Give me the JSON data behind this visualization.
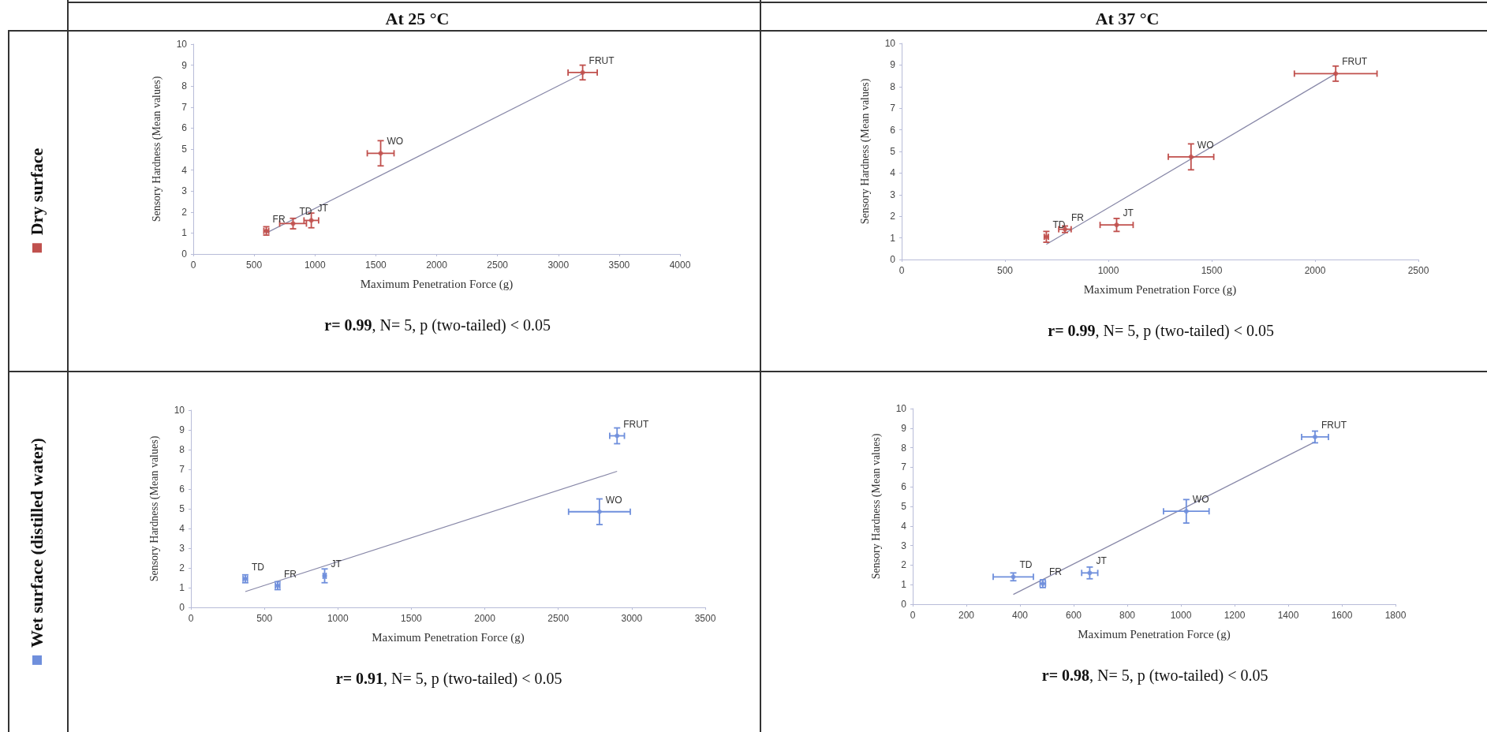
{
  "chart_data": [
    {
      "type": "scatter",
      "title": "At 25 °C",
      "xlabel": "Maximum Penetration Force (g)",
      "ylabel": "Sensory Hardness (Mean values)",
      "xlim": [
        0,
        4000
      ],
      "xticks": [
        0,
        500,
        1000,
        1500,
        2000,
        2500,
        3000,
        3500,
        4000
      ],
      "ylim": [
        0,
        10
      ],
      "yticks": [
        0,
        1,
        2,
        3,
        4,
        5,
        6,
        7,
        8,
        9,
        10
      ],
      "legend": "left",
      "marker": "circle",
      "annotations": [
        "r= 0.99, N= 5, p (two-tailed) < 0.05",
        {
          "text": "FR",
          "x": 600,
          "y": 1.1
        },
        {
          "text": "TD",
          "x": 820,
          "y": 1.45
        },
        {
          "text": "JT",
          "x": 970,
          "y": 1.6
        },
        {
          "text": "WO",
          "x": 1540,
          "y": 4.8
        },
        {
          "text": "FRUT",
          "x": 3200,
          "y": 8.65
        }
      ],
      "series": [
        {
          "name": "Dry surface",
          "color": "#c0504d",
          "x": [
            600,
            820,
            970,
            1540,
            3200
          ],
          "values": [
            1.1,
            1.45,
            1.6,
            4.8,
            8.65
          ],
          "errors": [
            0.2,
            0.25,
            0.35,
            0.6,
            0.35
          ],
          "xerrors": [
            20,
            110,
            60,
            110,
            120
          ]
        },
        {
          "type": "line",
          "color": "#8888a8",
          "marker": "none",
          "x": [
            600,
            3200
          ],
          "values": [
            1.0,
            8.6
          ]
        }
      ]
    },
    {
      "type": "scatter",
      "title": "At 37 °C",
      "xlabel": "Maximum Penetration Force (g)",
      "ylabel": "Sensory Hardness (Mean values)",
      "xlim": [
        0,
        2500
      ],
      "xticks": [
        0,
        500,
        1000,
        1500,
        2000,
        2500
      ],
      "ylim": [
        0,
        10
      ],
      "yticks": [
        0,
        1,
        2,
        3,
        4,
        5,
        6,
        7,
        8,
        9,
        10
      ],
      "marker": "circle",
      "annotations": [
        "r= 0.99, N= 5, p (two-tailed) < 0.05",
        {
          "text": "TD",
          "x": 700,
          "y": 1.05
        },
        {
          "text": "FR",
          "x": 790,
          "y": 1.4
        },
        {
          "text": "JT",
          "x": 1040,
          "y": 1.6
        },
        {
          "text": "WO",
          "x": 1400,
          "y": 4.75
        },
        {
          "text": "FRUT",
          "x": 2100,
          "y": 8.6
        }
      ],
      "series": [
        {
          "color": "#c0504d",
          "x": [
            700,
            790,
            1040,
            1400,
            2100
          ],
          "values": [
            1.05,
            1.4,
            1.6,
            4.75,
            8.6
          ],
          "errors": [
            0.25,
            0.15,
            0.3,
            0.6,
            0.35
          ],
          "xerrors": [
            10,
            30,
            80,
            110,
            200
          ]
        },
        {
          "type": "line",
          "color": "#8888a8",
          "marker": "none",
          "x": [
            700,
            2100
          ],
          "values": [
            0.7,
            8.6
          ]
        }
      ]
    },
    {
      "type": "scatter",
      "xlabel": "Maximum Penetration Force (g)",
      "ylabel": "Sensory Hardness (Mean values)",
      "xlim": [
        0,
        3500
      ],
      "xticks": [
        0,
        500,
        1000,
        1500,
        2000,
        2500,
        3000,
        3500
      ],
      "ylim": [
        0,
        10
      ],
      "yticks": [
        0,
        1,
        2,
        3,
        4,
        5,
        6,
        7,
        8,
        9,
        10
      ],
      "legend": "left",
      "marker": "circle",
      "annotations": [
        "r= 0.91, N= 5, p (two-tailed) < 0.05",
        {
          "text": "TD",
          "x": 370,
          "y": 1.45
        },
        {
          "text": "FR",
          "x": 590,
          "y": 1.1
        },
        {
          "text": "JT",
          "x": 910,
          "y": 1.6
        },
        {
          "text": "WO",
          "x": 2780,
          "y": 4.85
        },
        {
          "text": "FRUT",
          "x": 2900,
          "y": 8.7
        }
      ],
      "series": [
        {
          "name": "Wet surface (distilled water)",
          "color": "#6f8fdc",
          "x": [
            370,
            590,
            910,
            2780,
            2900
          ],
          "values": [
            1.45,
            1.1,
            1.6,
            4.85,
            8.7
          ],
          "errors": [
            0.2,
            0.2,
            0.35,
            0.65,
            0.4
          ],
          "xerrors": [
            15,
            15,
            10,
            210,
            50
          ]
        },
        {
          "type": "line",
          "color": "#8888a8",
          "marker": "none",
          "x": [
            370,
            2900
          ],
          "values": [
            0.8,
            6.9
          ]
        }
      ]
    },
    {
      "type": "scatter",
      "xlabel": "Maximum Penetration Force (g)",
      "ylabel": "Sensory Hardness (Mean values)",
      "xlim": [
        0,
        1800
      ],
      "xticks": [
        0,
        200,
        400,
        600,
        800,
        1000,
        1200,
        1400,
        1600,
        1800
      ],
      "ylim": [
        0,
        10
      ],
      "yticks": [
        0,
        1,
        2,
        3,
        4,
        5,
        6,
        7,
        8,
        9,
        10
      ],
      "marker": "circle",
      "annotations": [
        "r= 0.98, N= 5, p (two-tailed) < 0.05",
        {
          "text": "TD",
          "x": 375,
          "y": 1.4
        },
        {
          "text": "FR",
          "x": 485,
          "y": 1.05
        },
        {
          "text": "JT",
          "x": 660,
          "y": 1.6
        },
        {
          "text": "WO",
          "x": 1020,
          "y": 4.75
        },
        {
          "text": "FRUT",
          "x": 1500,
          "y": 8.55
        }
      ],
      "series": [
        {
          "color": "#6f8fdc",
          "x": [
            375,
            485,
            660,
            1020,
            1500
          ],
          "values": [
            1.4,
            1.05,
            1.6,
            4.75,
            8.55
          ],
          "errors": [
            0.2,
            0.2,
            0.3,
            0.6,
            0.3
          ],
          "xerrors": [
            75,
            10,
            30,
            85,
            50
          ]
        },
        {
          "type": "line",
          "color": "#8888a8",
          "marker": "none",
          "x": [
            375,
            1500
          ],
          "values": [
            0.5,
            8.3
          ]
        }
      ]
    }
  ]
}
